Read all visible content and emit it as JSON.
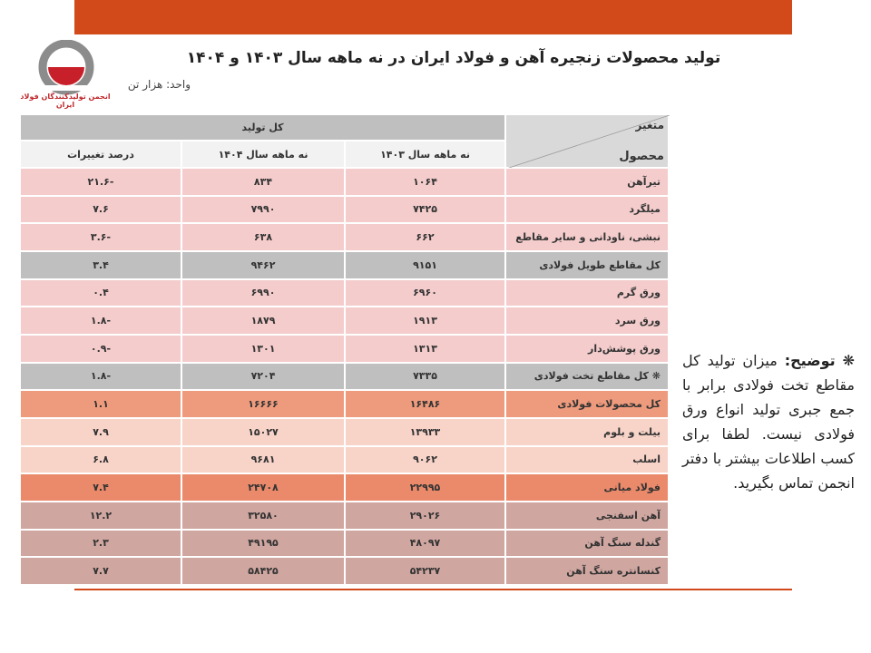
{
  "header": {
    "title": "تولید محصولات زنجیره آهن و فولاد ایران در نه ماهه سال ۱۴۰۳ و ۱۴۰۴",
    "unit": "واحد: هزار تن",
    "logo_text": "انجمن تولیدکنندگان فولاد ایران"
  },
  "table": {
    "corner_top": "متغیر",
    "corner_bottom": "محصول",
    "group": "کل تولید",
    "columns": [
      "نه ماهه سال ۱۴۰۳",
      "نه ماهه سال ۱۴۰۴",
      "درصد تغییرات"
    ],
    "rows": [
      [
        "تیرآهن",
        "۱۰۶۴",
        "۸۳۴",
        "۲۱.۶-"
      ],
      [
        "میلگرد",
        "۷۴۲۵",
        "۷۹۹۰",
        "۷.۶"
      ],
      [
        "نبشی، ناودانی و سایر مقاطع",
        "۶۶۲",
        "۶۳۸",
        "۳.۶-"
      ],
      [
        "کل مقاطع طویل فولادی",
        "۹۱۵۱",
        "۹۴۶۲",
        "۳.۴"
      ],
      [
        "ورق گرم",
        "۶۹۶۰",
        "۶۹۹۰",
        "۰.۴"
      ],
      [
        "ورق سرد",
        "۱۹۱۳",
        "۱۸۷۹",
        "۱.۸-"
      ],
      [
        "ورق پوشش‌دار",
        "۱۳۱۳",
        "۱۳۰۱",
        "۰.۹-"
      ],
      [
        "❋ کل مقاطع تخت فولادی",
        "۷۳۳۵",
        "۷۲۰۴",
        "۱.۸-"
      ],
      [
        "کل محصولات فولادی",
        "۱۶۴۸۶",
        "۱۶۶۶۶",
        "۱.۱"
      ],
      [
        "بیلت و بلوم",
        "۱۳۹۳۳",
        "۱۵۰۲۷",
        "۷.۹"
      ],
      [
        "اسلب",
        "۹۰۶۲",
        "۹۶۸۱",
        "۶.۸"
      ],
      [
        "فولاد میانی",
        "۲۲۹۹۵",
        "۲۴۷۰۸",
        "۷.۴"
      ],
      [
        "آهن اسفنجی",
        "۲۹۰۲۶",
        "۳۲۵۸۰",
        "۱۲.۲"
      ],
      [
        "گندله سنگ آهن",
        "۴۸۰۹۷",
        "۴۹۱۹۵",
        "۲.۳"
      ],
      [
        "کنسانتره سنگ آهن",
        "۵۴۲۳۷",
        "۵۸۴۲۵",
        "۷.۷"
      ]
    ]
  },
  "note": {
    "marker": "❋",
    "label": "توضیح:",
    "text": "میزان تولید کل مقاطع تخت فولادی برابر با جمع جبری تولید انواع ورق فولادی نیست. لطفا برای کسب اطلاعات بیشتر با دفتر انجمن تماس بگیرید."
  }
}
